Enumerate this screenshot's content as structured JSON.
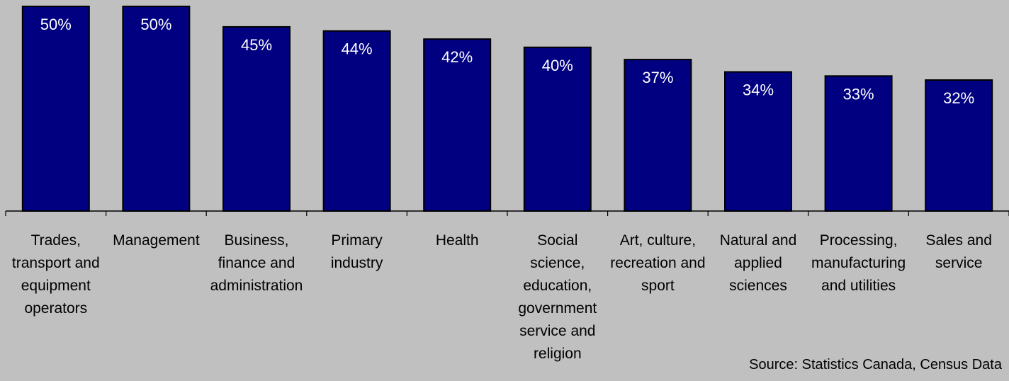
{
  "chart_data": {
    "type": "bar",
    "categories": [
      [
        "Trades,",
        "transport and",
        "equipment",
        "operators"
      ],
      [
        "Management"
      ],
      [
        "Business,",
        "finance and",
        "administration"
      ],
      [
        "Primary",
        "industry"
      ],
      [
        "Health"
      ],
      [
        "Social",
        "science,",
        "education,",
        "government",
        "service and",
        "religion"
      ],
      [
        "Art, culture,",
        "recreation and",
        "sport"
      ],
      [
        "Natural and",
        "applied",
        "sciences"
      ],
      [
        "Processing,",
        "manufacturing",
        "and utilities"
      ],
      [
        "Sales and",
        "service"
      ]
    ],
    "values": [
      50,
      50,
      45,
      44,
      42,
      40,
      37,
      34,
      33,
      32
    ],
    "data_labels": [
      "50%",
      "50%",
      "45%",
      "44%",
      "42%",
      "40%",
      "37%",
      "34%",
      "33%",
      "32%"
    ],
    "title": "",
    "xlabel": "",
    "ylabel": "",
    "grid": false,
    "legend": "none",
    "colors": {
      "bar": "#000080",
      "bar_outline": "#000000",
      "background": "#c0c0c0",
      "label_in_bar": "#ffffff",
      "axis": "#000000"
    }
  },
  "source": "Source: Statistics Canada, Census Data"
}
